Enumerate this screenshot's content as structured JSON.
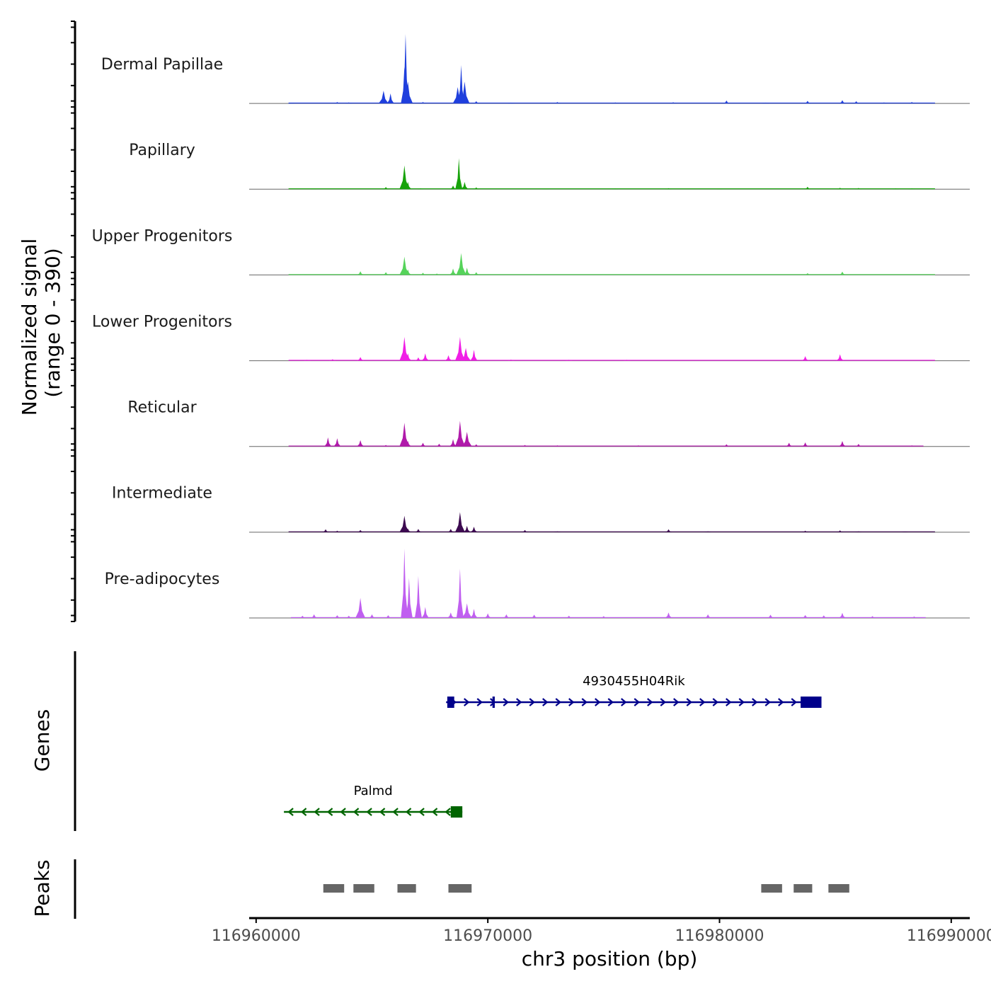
{
  "chart_data": {
    "type": "area",
    "title": "",
    "region": "chr3",
    "xlabel": "chr3 position (bp)",
    "ylabel": "Normalized signal",
    "ylabel_sub": "(range 0 - 390)",
    "xlim": [
      116959700,
      116990800
    ],
    "ylim": [
      0,
      390
    ],
    "x_ticks": [
      116960000,
      116970000,
      116980000,
      116990000
    ],
    "x_tick_labels": [
      "116960000",
      "116970000",
      "116980000",
      "116990000"
    ],
    "tracks": [
      {
        "name": "Dermal Papillae",
        "color": "#1f3fdd",
        "baseline_range": [
          116961400,
          116989300
        ],
        "peaks": [
          [
            116961500,
            4
          ],
          [
            116963500,
            8
          ],
          [
            116964000,
            6
          ],
          [
            116965500,
            70
          ],
          [
            116965800,
            55
          ],
          [
            116966400,
            200
          ],
          [
            116966450,
            380
          ],
          [
            116966550,
            120
          ],
          [
            116967200,
            8
          ],
          [
            116968700,
            90
          ],
          [
            116968850,
            210
          ],
          [
            116969000,
            120
          ],
          [
            116969500,
            12
          ],
          [
            116971000,
            5
          ],
          [
            116973000,
            8
          ],
          [
            116975500,
            6
          ],
          [
            116978000,
            7
          ],
          [
            116980300,
            16
          ],
          [
            116982000,
            5
          ],
          [
            116983800,
            14
          ],
          [
            116985300,
            18
          ],
          [
            116985900,
            12
          ],
          [
            116987100,
            6
          ],
          [
            116988300,
            8
          ]
        ]
      },
      {
        "name": "Papillary",
        "color": "#17a30a",
        "baseline_range": [
          116961400,
          116989300
        ],
        "peaks": [
          [
            116962500,
            3
          ],
          [
            116965600,
            12
          ],
          [
            116966400,
            130
          ],
          [
            116966550,
            40
          ],
          [
            116967100,
            5
          ],
          [
            116968500,
            20
          ],
          [
            116968750,
            170
          ],
          [
            116969000,
            40
          ],
          [
            116969500,
            10
          ],
          [
            116972500,
            3
          ],
          [
            116975500,
            4
          ],
          [
            116977800,
            6
          ],
          [
            116980000,
            3
          ],
          [
            116983800,
            13
          ],
          [
            116985200,
            8
          ],
          [
            116986000,
            7
          ],
          [
            116987600,
            5
          ],
          [
            116988300,
            5
          ]
        ]
      },
      {
        "name": "Upper Progenitors",
        "color": "#55d35a",
        "baseline_range": [
          116961400,
          116989300
        ],
        "peaks": [
          [
            116962000,
            3
          ],
          [
            116964500,
            20
          ],
          [
            116965600,
            15
          ],
          [
            116966400,
            100
          ],
          [
            116966550,
            30
          ],
          [
            116967200,
            12
          ],
          [
            116967800,
            8
          ],
          [
            116968500,
            35
          ],
          [
            116968850,
            120
          ],
          [
            116969100,
            40
          ],
          [
            116969500,
            15
          ],
          [
            116972000,
            3
          ],
          [
            116975000,
            3
          ],
          [
            116983800,
            10
          ],
          [
            116985300,
            18
          ]
        ]
      },
      {
        "name": "Lower Progenitors",
        "color": "#f01ee6",
        "baseline_range": [
          116961400,
          116989300
        ],
        "peaks": [
          [
            116962200,
            5
          ],
          [
            116963300,
            8
          ],
          [
            116964500,
            20
          ],
          [
            116966400,
            130
          ],
          [
            116966550,
            40
          ],
          [
            116967000,
            18
          ],
          [
            116967300,
            40
          ],
          [
            116968300,
            30
          ],
          [
            116968800,
            130
          ],
          [
            116969050,
            70
          ],
          [
            116969400,
            60
          ],
          [
            116971000,
            6
          ],
          [
            116973500,
            5
          ],
          [
            116976000,
            5
          ],
          [
            116983700,
            25
          ],
          [
            116985200,
            35
          ]
        ]
      },
      {
        "name": "Reticular",
        "color": "#b01aaa",
        "baseline_range": [
          116961400,
          116988800
        ],
        "peaks": [
          [
            116962000,
            4
          ],
          [
            116963100,
            50
          ],
          [
            116963500,
            45
          ],
          [
            116964500,
            35
          ],
          [
            116965600,
            8
          ],
          [
            116966400,
            130
          ],
          [
            116966550,
            30
          ],
          [
            116967200,
            20
          ],
          [
            116967900,
            15
          ],
          [
            116968500,
            40
          ],
          [
            116968800,
            140
          ],
          [
            116969100,
            80
          ],
          [
            116969500,
            12
          ],
          [
            116971600,
            8
          ],
          [
            116973000,
            6
          ],
          [
            116976500,
            6
          ],
          [
            116980300,
            12
          ],
          [
            116983000,
            20
          ],
          [
            116983700,
            22
          ],
          [
            116985300,
            30
          ],
          [
            116986000,
            14
          ],
          [
            116988300,
            6
          ]
        ]
      },
      {
        "name": "Intermediate",
        "color": "#3c0a50",
        "baseline_range": [
          116961400,
          116989300
        ],
        "peaks": [
          [
            116963000,
            16
          ],
          [
            116963500,
            8
          ],
          [
            116964500,
            12
          ],
          [
            116966400,
            90
          ],
          [
            116966550,
            20
          ],
          [
            116967000,
            18
          ],
          [
            116968400,
            18
          ],
          [
            116968800,
            110
          ],
          [
            116969100,
            35
          ],
          [
            116969400,
            30
          ],
          [
            116971600,
            12
          ],
          [
            116973000,
            5
          ],
          [
            116977800,
            16
          ],
          [
            116979500,
            5
          ],
          [
            116983700,
            8
          ],
          [
            116985200,
            10
          ],
          [
            116986000,
            5
          ],
          [
            116988000,
            4
          ]
        ]
      },
      {
        "name": "Pre-adipocytes",
        "color": "#c05ff0",
        "baseline_range": [
          116961500,
          116988900
        ],
        "peaks": [
          [
            116962000,
            12
          ],
          [
            116962500,
            20
          ],
          [
            116963500,
            15
          ],
          [
            116964000,
            12
          ],
          [
            116964500,
            110
          ],
          [
            116965000,
            20
          ],
          [
            116965700,
            15
          ],
          [
            116966400,
            380
          ],
          [
            116966600,
            220
          ],
          [
            116967000,
            230
          ],
          [
            116967300,
            60
          ],
          [
            116968400,
            30
          ],
          [
            116968800,
            270
          ],
          [
            116969100,
            80
          ],
          [
            116969400,
            50
          ],
          [
            116970000,
            25
          ],
          [
            116970800,
            20
          ],
          [
            116972000,
            18
          ],
          [
            116973500,
            12
          ],
          [
            116975000,
            10
          ],
          [
            116977800,
            30
          ],
          [
            116979500,
            20
          ],
          [
            116982200,
            18
          ],
          [
            116983700,
            16
          ],
          [
            116984500,
            14
          ],
          [
            116985300,
            28
          ],
          [
            116986600,
            10
          ],
          [
            116988400,
            8
          ]
        ]
      }
    ],
    "genes_track": {
      "label": "Genes",
      "genes": [
        {
          "name": "4930455H04Rik",
          "strand": "+",
          "start": 116968200,
          "end": 116984400,
          "color": "#00008b",
          "exons": [
            [
              116968250,
              116968550
            ],
            [
              116970200,
              116970300
            ],
            [
              116983500,
              116984400
            ]
          ],
          "row": 1
        },
        {
          "name": "Palmd",
          "strand": "-",
          "start": 116961200,
          "end": 116968900,
          "color": "#006400",
          "exons": [
            [
              116968400,
              116968900
            ]
          ],
          "row": 2
        }
      ]
    },
    "peaks_track": {
      "label": "Peaks",
      "color": "#666666",
      "regions": [
        [
          116962900,
          116963800
        ],
        [
          116964200,
          116965100
        ],
        [
          116966100,
          116966900
        ],
        [
          116968300,
          116969300
        ],
        [
          116981800,
          116982700
        ],
        [
          116983200,
          116984000
        ],
        [
          116984700,
          116985600
        ]
      ]
    }
  }
}
